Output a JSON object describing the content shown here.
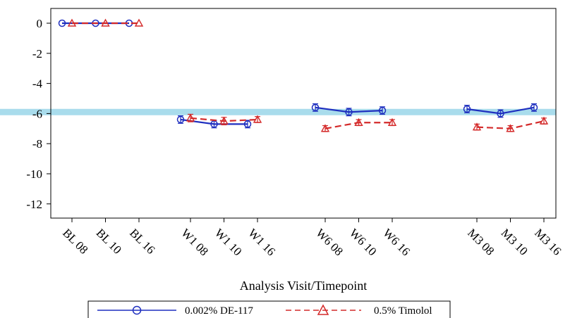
{
  "chart_data": {
    "type": "line",
    "title": "",
    "xlabel": "Analysis Visit/Timepoint",
    "ylabel": "",
    "ylim": [
      -13,
      1.5
    ],
    "yticks": [
      0,
      -2,
      -4,
      -6,
      -8,
      -10,
      -12
    ],
    "ytick_labels": [
      "0",
      "-2",
      "-4",
      "-6",
      "-8",
      "-10",
      "-12"
    ],
    "grid": false,
    "legend_position": "bottom",
    "reference_band": {
      "value": -5.9,
      "color": "#a9dcec"
    },
    "groups": [
      {
        "visit": "BL",
        "labels": [
          "BL 08",
          "BL 10",
          "BL 16"
        ]
      },
      {
        "visit": "W1",
        "labels": [
          "W1 08",
          "W1 10",
          "W1 16"
        ]
      },
      {
        "visit": "W6",
        "labels": [
          "W6 08",
          "W6 10",
          "W6 16"
        ]
      },
      {
        "visit": "M3",
        "labels": [
          "M3 08",
          "M3 10",
          "M3 16"
        ]
      }
    ],
    "series": [
      {
        "name": "0.002% DE-117",
        "color": "#1f2fbf",
        "marker": "circle",
        "line": "solid",
        "values": [
          [
            0,
            0,
            0
          ],
          [
            -6.4,
            -6.7,
            -6.7
          ],
          [
            -5.6,
            -5.9,
            -5.8
          ],
          [
            -5.7,
            -6.0,
            -5.6
          ]
        ],
        "errors": [
          [
            0,
            0,
            0
          ],
          [
            0.25,
            0.25,
            0.25
          ],
          [
            0.25,
            0.25,
            0.25
          ],
          [
            0.25,
            0.25,
            0.25
          ]
        ]
      },
      {
        "name": "0.5% Timolol",
        "color": "#d42a2a",
        "marker": "triangle",
        "line": "dashed",
        "values": [
          [
            0,
            0,
            0
          ],
          [
            -6.3,
            -6.5,
            -6.4
          ],
          [
            -7.0,
            -6.6,
            -6.6
          ],
          [
            -6.9,
            -7.0,
            -6.5
          ]
        ],
        "errors": [
          [
            0,
            0,
            0
          ],
          [
            0.25,
            0.25,
            0.2
          ],
          [
            0.2,
            0.2,
            0.2
          ],
          [
            0.2,
            0.2,
            0.2
          ]
        ]
      }
    ]
  },
  "legend": {
    "items": [
      "0.002% DE-117",
      "0.5% Timolol"
    ]
  }
}
